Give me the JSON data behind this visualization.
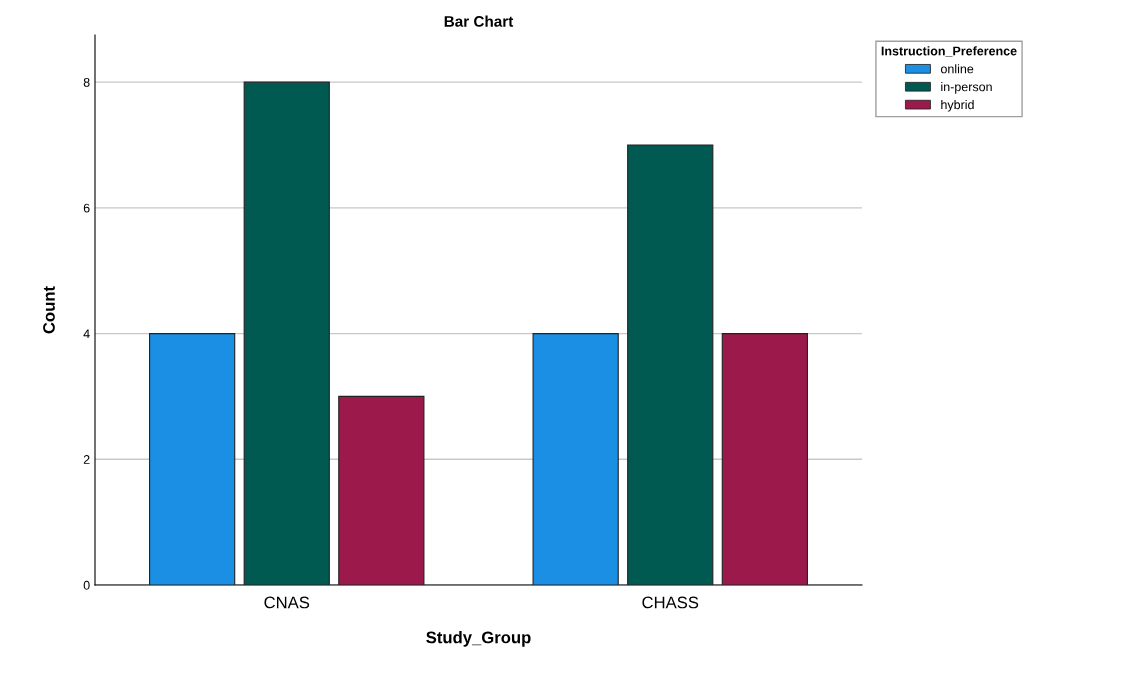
{
  "chart_data": {
    "type": "bar",
    "title": "Bar Chart",
    "xlabel": "Study_Group",
    "ylabel": "Count",
    "legend_title": "Instruction_Preference",
    "categories": [
      "CNAS",
      "CHASS"
    ],
    "series": [
      {
        "name": "online",
        "color": "#1b8fe3",
        "values": [
          4,
          4
        ]
      },
      {
        "name": "in-person",
        "color": "#005a52",
        "values": [
          8,
          7
        ]
      },
      {
        "name": "hybrid",
        "color": "#9b1a4b",
        "values": [
          3,
          4
        ]
      }
    ],
    "ylim": [
      0,
      8.75
    ],
    "yticks": [
      0,
      2,
      4,
      6,
      8
    ],
    "grid": "y",
    "legend": "top right"
  }
}
